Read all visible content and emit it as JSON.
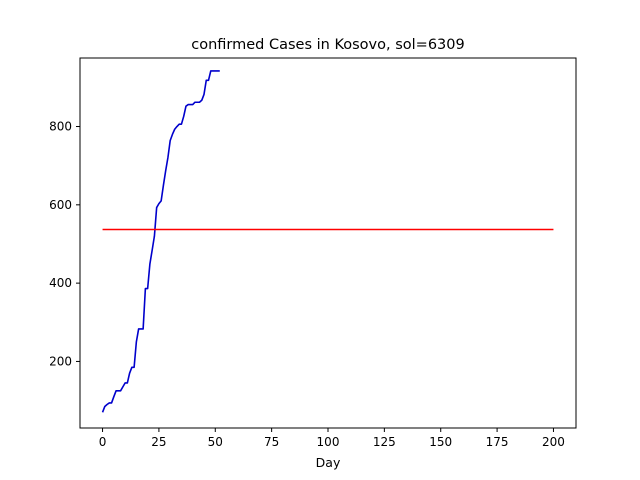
{
  "chart_data": {
    "type": "line",
    "title": "confirmed Cases in Kosovo, sol=6309",
    "xlabel": "Day",
    "ylabel": "",
    "xlim": [
      -10,
      210
    ],
    "ylim": [
      30,
      975
    ],
    "xticks": [
      0,
      25,
      50,
      75,
      100,
      125,
      150,
      175,
      200
    ],
    "yticks": [
      200,
      400,
      600,
      800
    ],
    "grid": false,
    "legend": "none",
    "series": [
      {
        "color": "#0000cc",
        "x": [
          0,
          1,
          2,
          3,
          4,
          5,
          6,
          7,
          8,
          9,
          10,
          11,
          12,
          13,
          14,
          15,
          16,
          17,
          18,
          19,
          20,
          21,
          22,
          23,
          24,
          25,
          26,
          27,
          28,
          29,
          30,
          31,
          32,
          33,
          34,
          35,
          36,
          37,
          38,
          39,
          40,
          41,
          42,
          43,
          44,
          45,
          46,
          47,
          48,
          49,
          50,
          51,
          52
        ],
        "y": [
          70,
          85,
          90,
          94,
          94,
          110,
          125,
          125,
          125,
          135,
          145,
          145,
          170,
          185,
          185,
          250,
          283,
          283,
          283,
          386,
          386,
          449,
          484,
          520,
          593,
          603,
          610,
          650,
          687,
          721,
          764,
          780,
          793,
          800,
          806,
          806,
          826,
          852,
          856,
          856,
          856,
          862,
          862,
          862,
          867,
          882,
          918,
          918,
          942,
          942,
          942,
          942,
          942
        ]
      },
      {
        "color": "#ff0000",
        "x": [
          0,
          200
        ],
        "y": [
          537,
          537
        ]
      }
    ]
  }
}
